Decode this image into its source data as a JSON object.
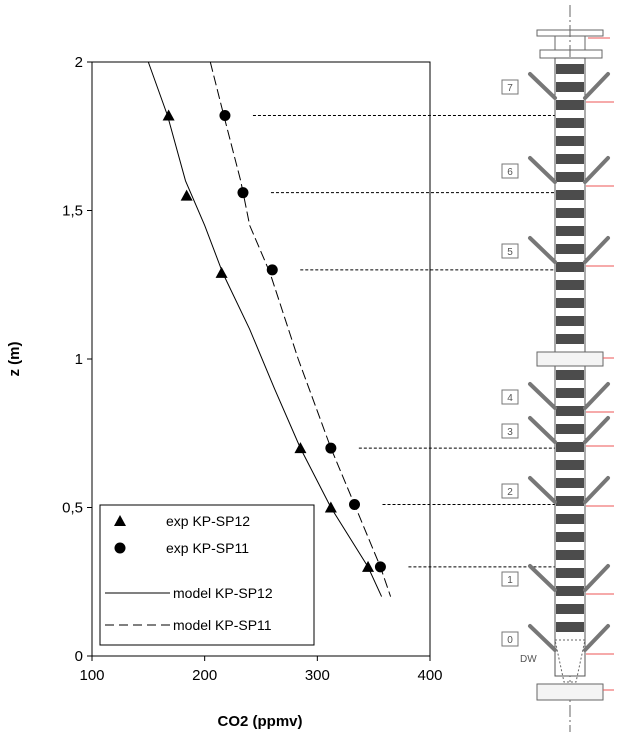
{
  "chart_data": {
    "type": "scatter",
    "title": "",
    "xlabel": "CO2 (ppmv)",
    "ylabel": "z (m)",
    "xlim": [
      100,
      400
    ],
    "ylim": [
      0,
      2
    ],
    "xticks": [
      100,
      200,
      300,
      400
    ],
    "xtick_labels": [
      "100",
      "200",
      "300",
      "400"
    ],
    "yticks": [
      0,
      0.5,
      1,
      1.5,
      2
    ],
    "ytick_labels": [
      "0",
      "0,5",
      "1",
      "1,5",
      "2"
    ],
    "grid": false,
    "legend_position": "bottom-left",
    "series": [
      {
        "name": "exp KP-SP12",
        "kind": "points",
        "marker": "triangle",
        "points": [
          [
            168,
            1.82
          ],
          [
            184,
            1.55
          ],
          [
            215,
            1.29
          ],
          [
            285,
            0.7
          ],
          [
            312,
            0.5
          ],
          [
            345,
            0.3
          ]
        ]
      },
      {
        "name": "exp KP-SP11",
        "kind": "points",
        "marker": "circle",
        "points": [
          [
            218,
            1.82
          ],
          [
            234,
            1.56
          ],
          [
            260,
            1.3
          ],
          [
            312,
            0.7
          ],
          [
            333,
            0.51
          ],
          [
            356,
            0.3
          ]
        ]
      },
      {
        "name": "model KP-SP12",
        "kind": "line",
        "style": "solid",
        "points": [
          [
            150,
            2.0
          ],
          [
            167,
            1.82
          ],
          [
            183,
            1.6
          ],
          [
            200,
            1.45
          ],
          [
            216,
            1.29
          ],
          [
            240,
            1.1
          ],
          [
            262,
            0.9
          ],
          [
            285,
            0.7
          ],
          [
            312,
            0.5
          ],
          [
            345,
            0.3
          ],
          [
            357,
            0.2
          ]
        ]
      },
      {
        "name": "model KP-SP11",
        "kind": "line",
        "style": "dashed",
        "points": [
          [
            205,
            2.0
          ],
          [
            217,
            1.82
          ],
          [
            232,
            1.6
          ],
          [
            240,
            1.45
          ],
          [
            258,
            1.29
          ],
          [
            283,
            1.0
          ],
          [
            312,
            0.7
          ],
          [
            333,
            0.51
          ],
          [
            356,
            0.3
          ],
          [
            365,
            0.2
          ]
        ]
      }
    ],
    "annotations": {
      "port_labels": [
        "7",
        "6",
        "5",
        "4",
        "3",
        "2",
        "1",
        "0"
      ],
      "bottom_label": "DW"
    }
  }
}
